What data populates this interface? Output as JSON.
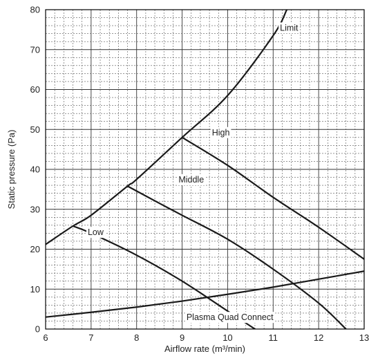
{
  "chart_data": {
    "type": "line",
    "xlabel": "Airflow rate (m³/min)",
    "ylabel": "Static pressure (Pa)",
    "xlim": [
      6,
      13
    ],
    "ylim": [
      0,
      80
    ],
    "x_ticks": [
      "6",
      "7",
      "8",
      "9",
      "10",
      "11",
      "12",
      "13"
    ],
    "y_ticks": [
      "0",
      "10",
      "20",
      "30",
      "40",
      "50",
      "60",
      "70",
      "80"
    ],
    "grid": "major and minor dashed",
    "series": [
      {
        "name": "Limit",
        "x": [
          6.0,
          6.6,
          7.0,
          7.8,
          8.0,
          9.0,
          10.0,
          11.0,
          11.3
        ],
        "y": [
          21.2,
          25.8,
          28.5,
          35.8,
          37.5,
          48.0,
          58.5,
          73.5,
          80.0
        ]
      },
      {
        "name": "High",
        "x": [
          9.0,
          10.0,
          11.0,
          12.0,
          13.0
        ],
        "y": [
          48.0,
          41.0,
          33.0,
          25.5,
          17.5
        ]
      },
      {
        "name": "Middle",
        "x": [
          7.8,
          8.5,
          9.0,
          10.0,
          11.0,
          12.0,
          12.6
        ],
        "y": [
          35.8,
          31.5,
          28.5,
          22.5,
          15.0,
          6.5,
          0.0
        ]
      },
      {
        "name": "Low",
        "x": [
          6.6,
          7.0,
          8.0,
          9.0,
          10.0,
          10.6
        ],
        "y": [
          25.8,
          24.0,
          18.5,
          12.0,
          4.5,
          0.0
        ]
      },
      {
        "name": "Plasma Quad Connect",
        "x": [
          6.0,
          7.0,
          8.0,
          9.0,
          10.0,
          11.0,
          12.0,
          13.0
        ],
        "y": [
          3.0,
          4.2,
          5.5,
          7.0,
          8.7,
          10.5,
          12.5,
          14.5
        ]
      }
    ]
  }
}
